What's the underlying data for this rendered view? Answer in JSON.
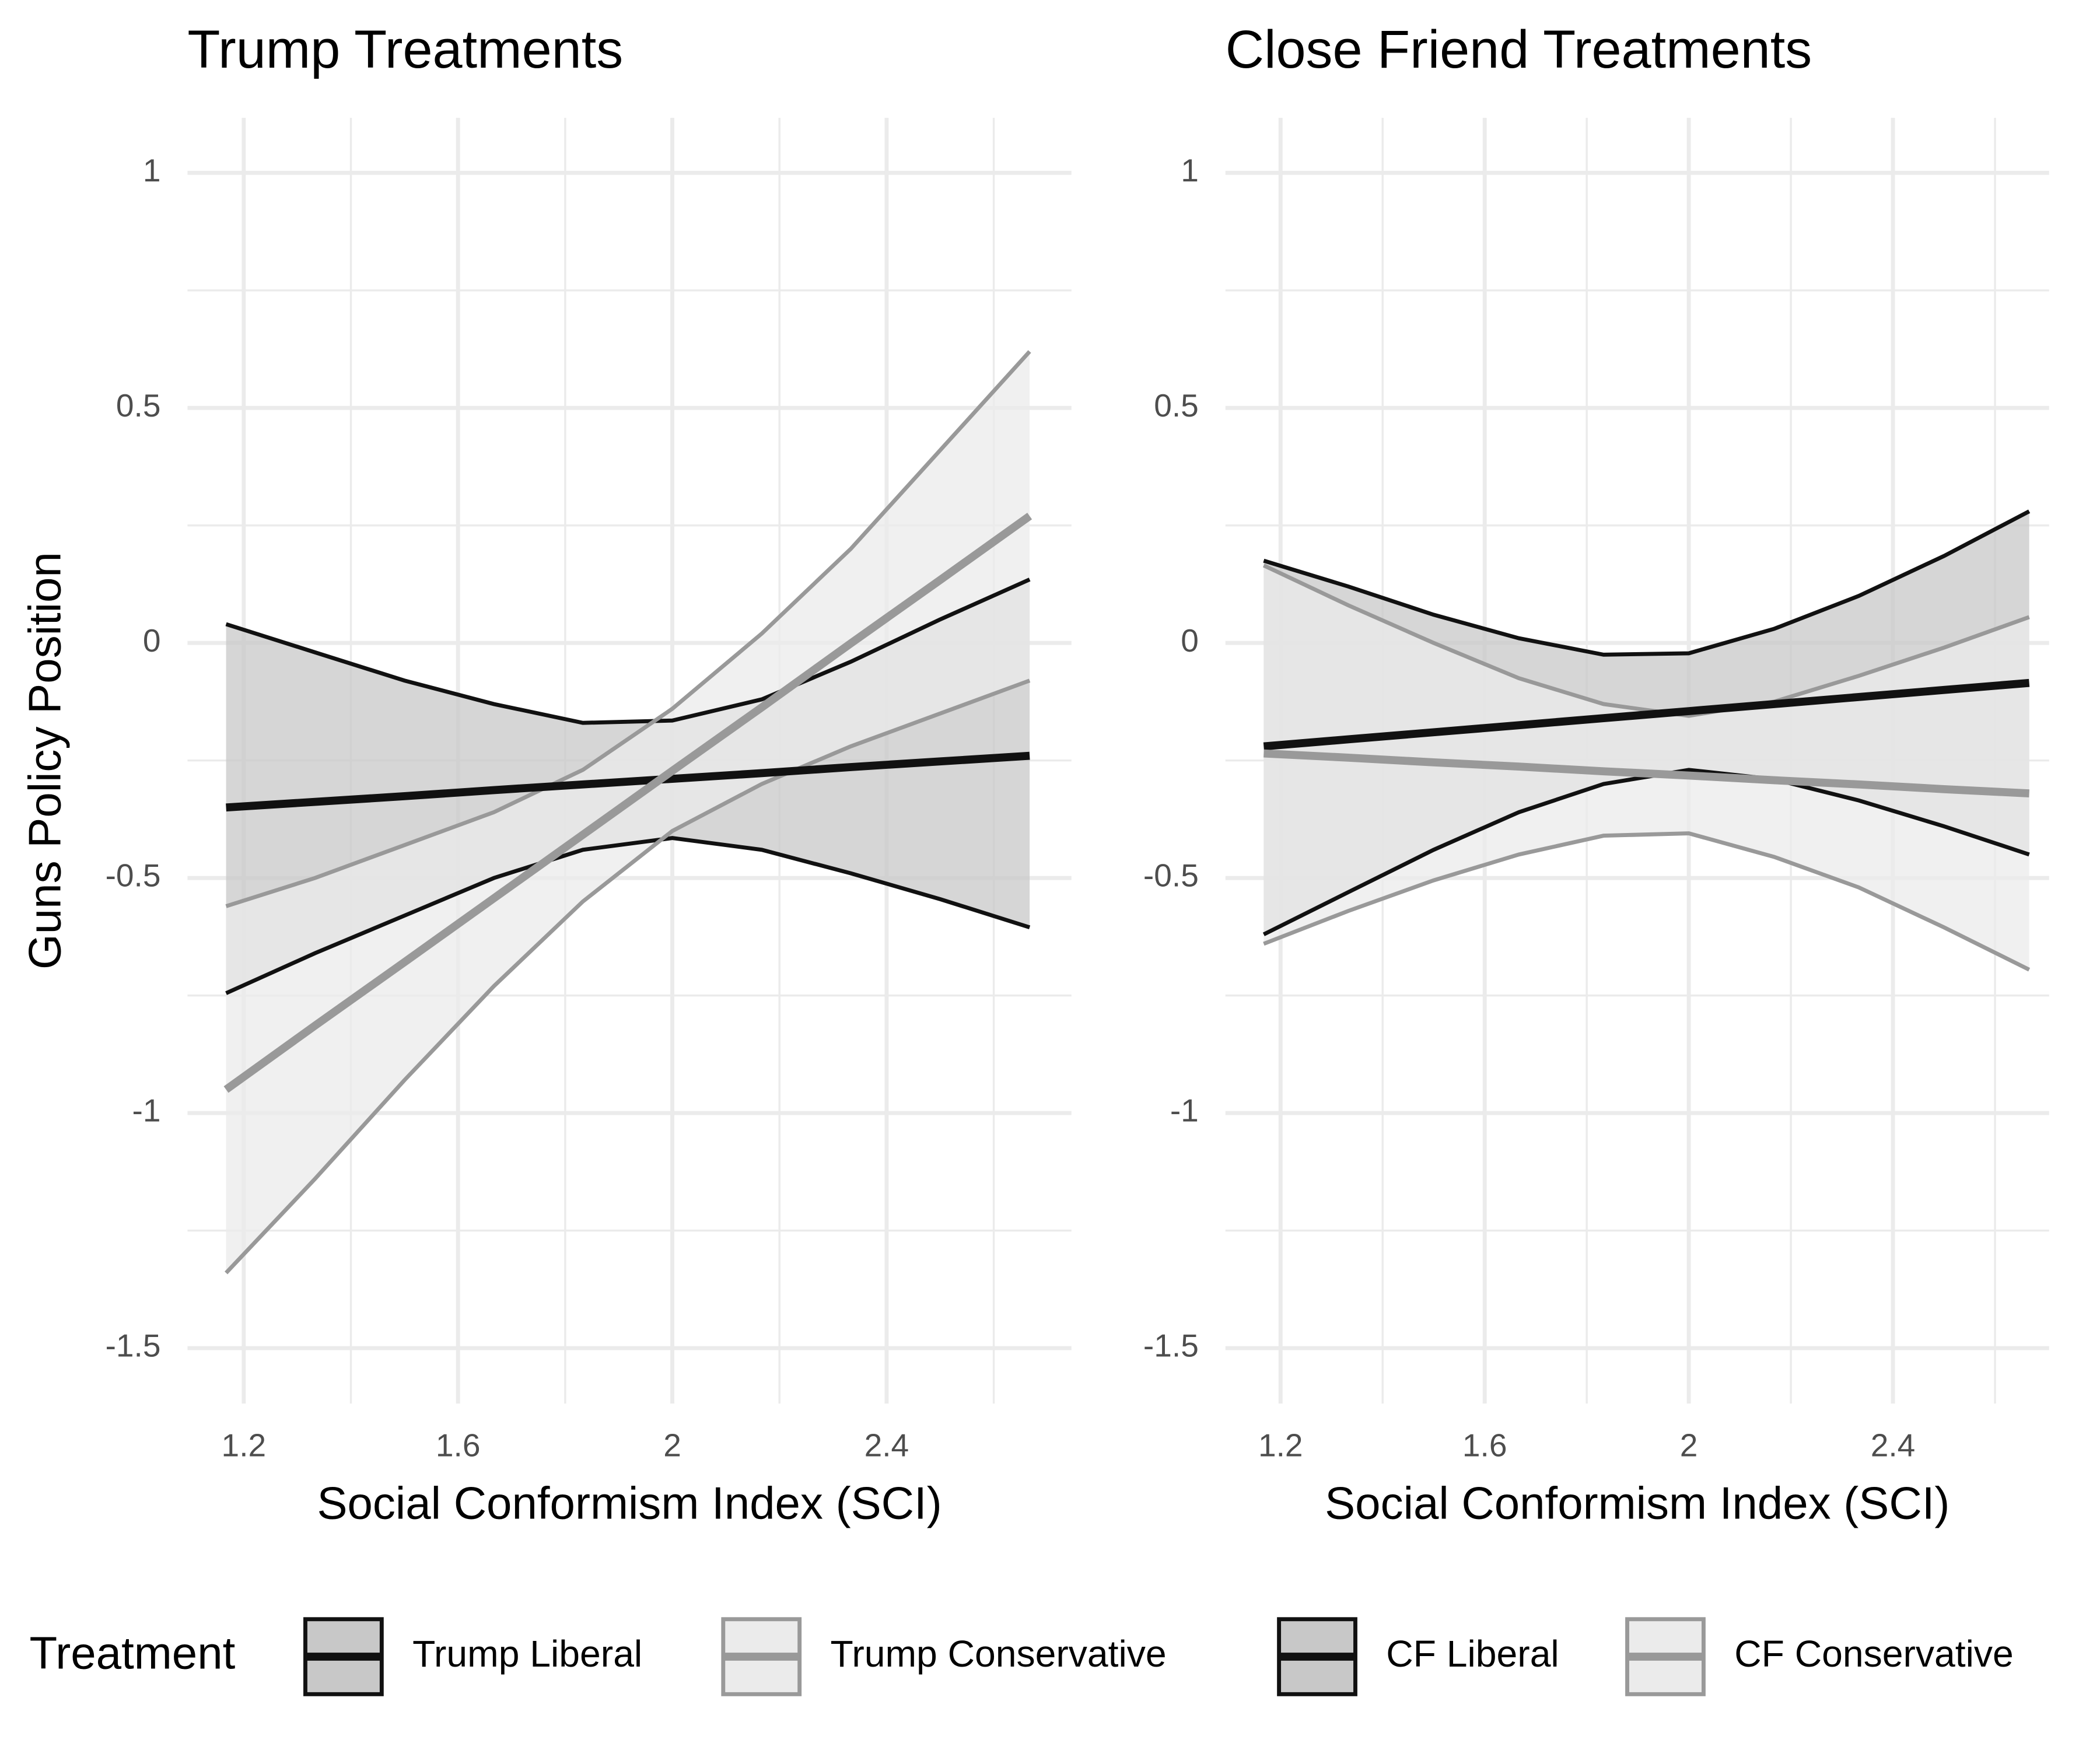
{
  "chart_data": [
    {
      "type": "line",
      "title": "Trump Treatments",
      "ylabel": "Guns Policy Position",
      "xlabel": "Social Conformism Index (SCI)",
      "legend_title": "Treatment",
      "x": [
        1.167,
        1.333,
        1.5,
        1.667,
        1.833,
        2.0,
        2.167,
        2.333,
        2.5,
        2.667
      ],
      "xlim": [
        1.095,
        2.745
      ],
      "ylim": [
        -1.618,
        1.117
      ],
      "xticks": [
        1.2,
        1.6,
        2.0,
        2.4
      ],
      "yticks": [
        1.0,
        0.5,
        0.0,
        -0.5,
        -1.0,
        -1.5
      ],
      "xminor": [
        1.4,
        1.8,
        2.2,
        2.6
      ],
      "yminor": [
        0.75,
        0.25,
        -0.25,
        -0.75,
        -1.25
      ],
      "grid": true,
      "series": [
        {
          "name": "Trump Liberal",
          "color": "#111111",
          "fill": "#c8c8c8",
          "values": [
            -0.35,
            -0.338,
            -0.326,
            -0.313,
            -0.301,
            -0.289,
            -0.277,
            -0.264,
            -0.252,
            -0.24
          ],
          "upper": [
            0.04,
            -0.02,
            -0.08,
            -0.13,
            -0.17,
            -0.165,
            -0.12,
            -0.04,
            0.05,
            0.135
          ],
          "lower": [
            -0.745,
            -0.66,
            -0.58,
            -0.5,
            -0.44,
            -0.415,
            -0.44,
            -0.49,
            -0.545,
            -0.605
          ]
        },
        {
          "name": "Trump Conservative",
          "color": "#999999",
          "fill": "#ebebeb",
          "values": [
            -0.95,
            -0.814,
            -0.679,
            -0.543,
            -0.408,
            -0.272,
            -0.137,
            -0.001,
            0.134,
            0.27
          ],
          "upper": [
            -0.56,
            -0.5,
            -0.43,
            -0.36,
            -0.27,
            -0.14,
            0.02,
            0.2,
            0.41,
            0.62
          ],
          "lower": [
            -1.34,
            -1.14,
            -0.93,
            -0.73,
            -0.55,
            -0.4,
            -0.3,
            -0.22,
            -0.15,
            -0.08
          ]
        }
      ]
    },
    {
      "type": "line",
      "title": "Close Friend Treatments",
      "xlabel": "Social Conformism Index (SCI)",
      "x": [
        1.167,
        1.333,
        1.5,
        1.667,
        1.833,
        2.0,
        2.167,
        2.333,
        2.5,
        2.667
      ],
      "xlim": [
        1.092,
        2.706
      ],
      "ylim": [
        -1.618,
        1.117
      ],
      "xticks": [
        1.2,
        1.6,
        2.0,
        2.4
      ],
      "yticks": [
        1.0,
        0.5,
        0.0,
        -0.5,
        -1.0,
        -1.5
      ],
      "xminor": [
        1.4,
        1.8,
        2.2,
        2.6
      ],
      "yminor": [
        0.75,
        0.25,
        -0.25,
        -0.75,
        -1.25
      ],
      "grid": true,
      "series": [
        {
          "name": "CF Liberal",
          "color": "#111111",
          "fill": "#c8c8c8",
          "values": [
            -0.22,
            -0.205,
            -0.19,
            -0.175,
            -0.16,
            -0.145,
            -0.13,
            -0.115,
            -0.1,
            -0.085
          ],
          "upper": [
            0.175,
            0.12,
            0.06,
            0.01,
            -0.025,
            -0.022,
            0.03,
            0.1,
            0.185,
            0.28
          ],
          "lower": [
            -0.62,
            -0.53,
            -0.44,
            -0.36,
            -0.3,
            -0.27,
            -0.29,
            -0.335,
            -0.39,
            -0.45
          ]
        },
        {
          "name": "CF Conservative",
          "color": "#999999",
          "fill": "#ebebeb",
          "values": [
            -0.235,
            -0.244,
            -0.254,
            -0.263,
            -0.273,
            -0.282,
            -0.292,
            -0.301,
            -0.311,
            -0.32
          ],
          "upper": [
            0.165,
            0.08,
            0.0,
            -0.075,
            -0.13,
            -0.155,
            -0.125,
            -0.07,
            -0.01,
            0.055
          ],
          "lower": [
            -0.64,
            -0.57,
            -0.505,
            -0.45,
            -0.41,
            -0.405,
            -0.455,
            -0.52,
            -0.605,
            -0.695
          ]
        }
      ]
    }
  ]
}
